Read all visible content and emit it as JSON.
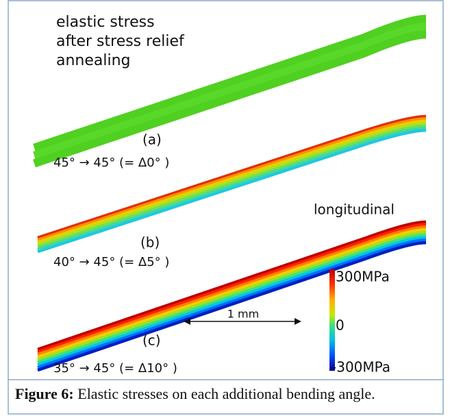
{
  "figure": {
    "title_lines": [
      "elastic stress",
      "after stress relief",
      "annealing"
    ],
    "panels": [
      {
        "label": "(a)",
        "angles": "45°  →   45°  (= Δ0°  )"
      },
      {
        "label": "(b)",
        "angles": "40°  →   45°  (= Δ5°  )"
      },
      {
        "label": "(c)",
        "angles": "35°  →   45°  (= Δ10°  )"
      }
    ],
    "stress_component": "longitudinal",
    "colorbar_labels": [
      "300MPa",
      "0",
      "-300MPa"
    ],
    "scale_bar": "1 mm"
  },
  "caption": {
    "label": "Figure 6:",
    "text": "Elastic stresses on each additional bending angle."
  }
}
